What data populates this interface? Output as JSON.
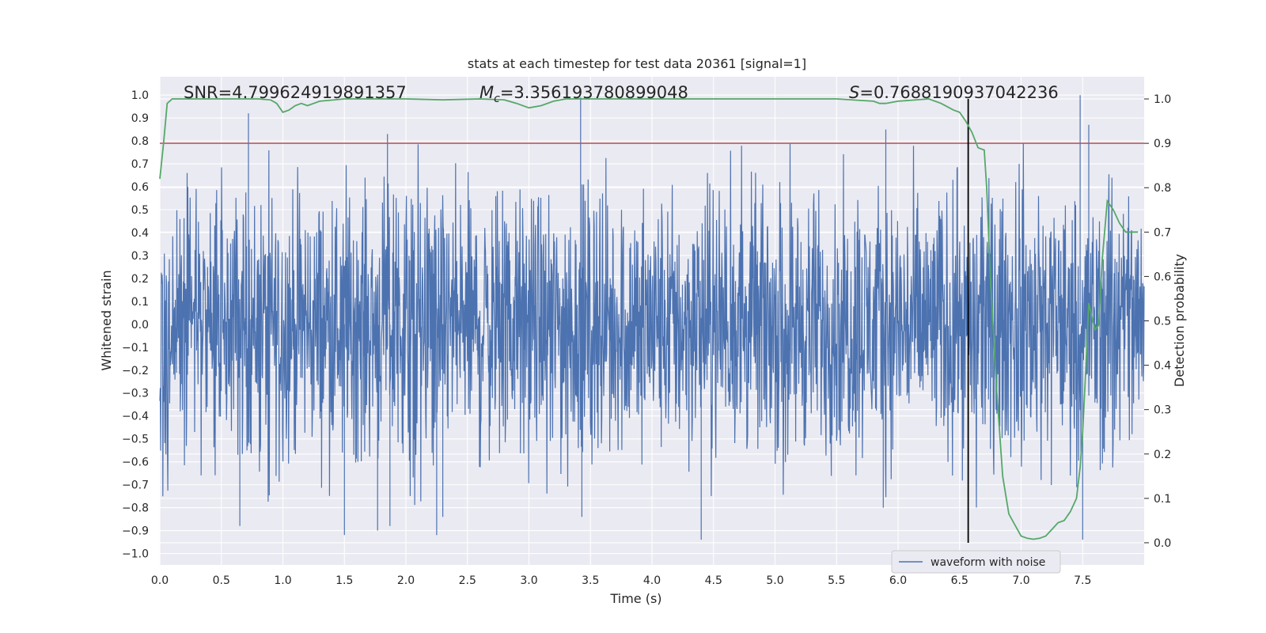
{
  "chart_data": {
    "type": "line",
    "title": "stats at each timestep for test data 20361 [signal=1]",
    "xlabel": "Time (s)",
    "ylabel": "Whitened strain",
    "ylabel_right": "Detection probability",
    "xlim": [
      0.0,
      8.0
    ],
    "ylim": [
      -1.05,
      1.08
    ],
    "ylim_right": [
      -0.05,
      1.05
    ],
    "xticks": [
      0.0,
      0.5,
      1.0,
      1.5,
      2.0,
      2.5,
      3.0,
      3.5,
      4.0,
      4.5,
      5.0,
      5.5,
      6.0,
      6.5,
      7.0,
      7.5
    ],
    "xtick_labels": [
      "0.0",
      "0.5",
      "1.0",
      "1.5",
      "2.0",
      "2.5",
      "3.0",
      "3.5",
      "4.0",
      "4.5",
      "5.0",
      "5.5",
      "6.0",
      "6.5",
      "7.0",
      "7.5"
    ],
    "yticks": [
      1.0,
      0.9,
      0.8,
      0.7,
      0.6,
      0.5,
      0.4,
      0.3,
      0.2,
      0.1,
      0.0,
      -0.1,
      -0.2,
      -0.3,
      -0.4,
      -0.5,
      -0.6,
      -0.7,
      -0.8,
      -0.9,
      -1.0
    ],
    "ytick_labels": [
      "1.0",
      "0.9",
      "0.8",
      "0.7",
      "0.6",
      "0.5",
      "0.4",
      "0.3",
      "0.2",
      "0.1",
      "0.0",
      "−0.1",
      "−0.2",
      "−0.3",
      "−0.4",
      "−0.5",
      "−0.6",
      "−0.7",
      "−0.8",
      "−0.9",
      "−1.0"
    ],
    "yticks_right": [
      1.0,
      0.9,
      0.8,
      0.7,
      0.6,
      0.5,
      0.4,
      0.3,
      0.2,
      0.1,
      0.0
    ],
    "ytick_labels_right": [
      "1.0",
      "0.9",
      "0.8",
      "0.7",
      "0.6",
      "0.5",
      "0.4",
      "0.3",
      "0.2",
      "0.1",
      "0.0"
    ],
    "annotations": {
      "snr": "SNR=4.799624919891357",
      "mc_symbol": "M",
      "mc_sub": "c",
      "mc_value": "=3.356193780899048",
      "s_symbol": "S",
      "s_value": "=0.7688190937042236"
    },
    "grid": true,
    "legend": {
      "position": "bottom-right",
      "entries": [
        "waveform with noise"
      ]
    },
    "colors": {
      "waveform": "#4c72b0",
      "probability": "#55a868",
      "threshold": "#c44e52",
      "event_line": "#000000",
      "background": "#eaeaf2",
      "grid": "#ffffff"
    },
    "waveform": {
      "name": "waveform with noise",
      "x_range": [
        0.0,
        8.0
      ],
      "typical_envelope": [
        -0.55,
        0.5
      ],
      "peak_spikes": [
        {
          "x": 0.72,
          "y": 0.92
        },
        {
          "x": 0.65,
          "y": -0.88
        },
        {
          "x": 1.5,
          "y": -0.92
        },
        {
          "x": 1.77,
          "y": -0.9
        },
        {
          "x": 1.85,
          "y": 0.83
        },
        {
          "x": 1.87,
          "y": -0.88
        },
        {
          "x": 2.25,
          "y": -0.92
        },
        {
          "x": 2.3,
          "y": -0.84
        },
        {
          "x": 3.42,
          "y": 0.99
        },
        {
          "x": 3.43,
          "y": -0.84
        },
        {
          "x": 4.4,
          "y": -0.94
        },
        {
          "x": 5.9,
          "y": 0.85
        },
        {
          "x": 5.88,
          "y": -0.8
        },
        {
          "x": 7.48,
          "y": 1.0
        },
        {
          "x": 7.5,
          "y": -0.94
        },
        {
          "x": 7.55,
          "y": 0.87
        }
      ]
    },
    "probability": {
      "name": "detection probability",
      "x": [
        0.0,
        0.03,
        0.06,
        0.1,
        0.2,
        0.4,
        0.6,
        0.8,
        0.9,
        0.95,
        1.0,
        1.05,
        1.1,
        1.15,
        1.2,
        1.25,
        1.3,
        1.5,
        2.0,
        2.3,
        2.6,
        2.8,
        2.9,
        3.0,
        3.1,
        3.2,
        3.3,
        3.5,
        4.0,
        5.0,
        5.5,
        5.8,
        5.85,
        5.9,
        6.0,
        6.25,
        6.35,
        6.45,
        6.5,
        6.55,
        6.6,
        6.65,
        6.7,
        6.72,
        6.75,
        6.8,
        6.85,
        6.9,
        6.95,
        7.0,
        7.05,
        7.1,
        7.15,
        7.2,
        7.25,
        7.3,
        7.35,
        7.4,
        7.45,
        7.48,
        7.5,
        7.52,
        7.55,
        7.6,
        7.63,
        7.66,
        7.7,
        7.75,
        7.8,
        7.85,
        7.9,
        7.95
      ],
      "values": [
        0.82,
        0.9,
        0.99,
        1.0,
        1.0,
        1.0,
        1.0,
        1.0,
        0.998,
        0.99,
        0.97,
        0.975,
        0.985,
        0.99,
        0.985,
        0.99,
        0.995,
        1.0,
        1.0,
        0.998,
        1.0,
        0.998,
        0.99,
        0.98,
        0.985,
        0.995,
        1.0,
        1.0,
        1.0,
        1.0,
        1.0,
        0.995,
        0.99,
        0.99,
        0.995,
        1.0,
        0.99,
        0.975,
        0.97,
        0.95,
        0.925,
        0.89,
        0.885,
        0.8,
        0.6,
        0.35,
        0.15,
        0.065,
        0.04,
        0.015,
        0.01,
        0.008,
        0.01,
        0.015,
        0.03,
        0.045,
        0.05,
        0.07,
        0.1,
        0.17,
        0.25,
        0.36,
        0.54,
        0.48,
        0.49,
        0.64,
        0.77,
        0.75,
        0.72,
        0.7,
        0.7,
        0.7
      ],
      "axis": "right"
    },
    "threshold_line": {
      "axis": "right",
      "y": 0.9
    },
    "event_marker": {
      "x": 6.57
    }
  }
}
